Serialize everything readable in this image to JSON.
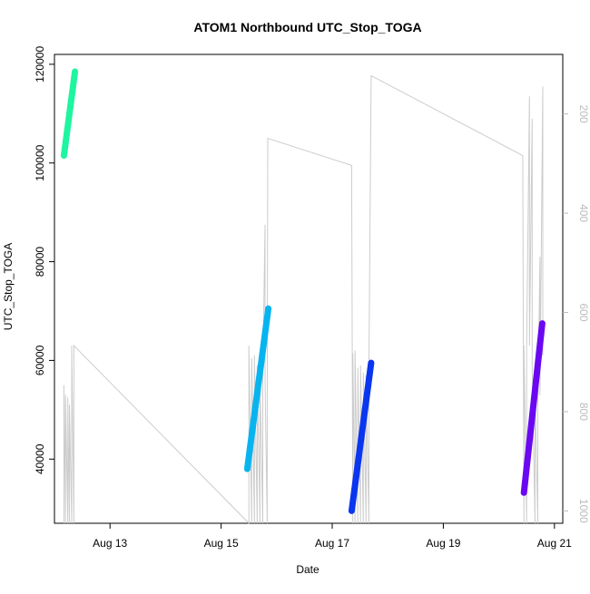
{
  "chart_data": {
    "type": "line",
    "title": "ATOM1 Northbound UTC_Stop_TOGA",
    "xlabel": "Date",
    "ylabel": "UTC_Stop_TOGA",
    "x_ticks": [
      {
        "day": 13,
        "label": "Aug 13"
      },
      {
        "day": 15,
        "label": "Aug 15"
      },
      {
        "day": 17,
        "label": "Aug 17"
      },
      {
        "day": 19,
        "label": "Aug 19"
      },
      {
        "day": 21,
        "label": "Aug 21"
      }
    ],
    "xlim_days": [
      12.0,
      21.15
    ],
    "y_ticks": [
      40000,
      60000,
      80000,
      100000,
      120000
    ],
    "y_tick_labels": [
      "40000",
      "60000",
      "80000",
      "100000",
      "120000"
    ],
    "ylim": [
      27000,
      122000
    ],
    "y2_ticks": [
      200,
      400,
      600,
      800,
      1000
    ],
    "y2_tick_labels": [
      "200",
      "400",
      "600",
      "800",
      "1000"
    ],
    "y2lim": [
      1025,
      80
    ],
    "series": [
      {
        "x_start": 12.17,
        "x_end": 12.37,
        "y_start": 101500,
        "y_end": 118500,
        "color": "#1ef5a0"
      },
      {
        "x_start": 15.47,
        "x_end": 15.85,
        "y_start": 38000,
        "y_end": 70500,
        "color": "#08b4f0"
      },
      {
        "x_start": 17.35,
        "x_end": 17.7,
        "y_start": 29500,
        "y_end": 59500,
        "color": "#0a36f0"
      },
      {
        "x_start": 20.45,
        "x_end": 20.78,
        "y_start": 33200,
        "y_end": 67500,
        "color": "#6a08f2"
      }
    ],
    "background_line": {
      "color": "#cccccc",
      "points": [
        [
          12.17,
          117
        ],
        [
          12.17,
          55000
        ],
        [
          12.2,
          117
        ],
        [
          12.2,
          53000
        ],
        [
          12.24,
          117
        ],
        [
          12.24,
          52500
        ],
        [
          12.27,
          117
        ],
        [
          12.27,
          51000
        ],
        [
          12.31,
          117
        ],
        [
          12.31,
          63000
        ],
        [
          12.35,
          117
        ],
        [
          12.35,
          63000
        ],
        [
          15.5,
          117
        ],
        [
          15.5,
          63000
        ],
        [
          15.55,
          117
        ],
        [
          15.55,
          60500
        ],
        [
          15.6,
          117
        ],
        [
          15.6,
          61000
        ],
        [
          15.65,
          117
        ],
        [
          15.65,
          59000
        ],
        [
          15.7,
          117
        ],
        [
          15.7,
          57000
        ],
        [
          15.75,
          117
        ],
        [
          15.75,
          56500
        ],
        [
          15.79,
          87500
        ],
        [
          15.79,
          56000
        ],
        [
          15.83,
          117
        ],
        [
          15.83,
          52000
        ],
        [
          15.84,
          105000
        ],
        [
          17.35,
          99500
        ],
        [
          17.37,
          117
        ],
        [
          17.37,
          61500
        ],
        [
          17.41,
          117
        ],
        [
          17.41,
          62000
        ],
        [
          17.46,
          117
        ],
        [
          17.46,
          58500
        ],
        [
          17.51,
          117
        ],
        [
          17.51,
          59000
        ],
        [
          17.56,
          117
        ],
        [
          17.56,
          57500
        ],
        [
          17.61,
          117
        ],
        [
          17.61,
          57000
        ],
        [
          17.66,
          117
        ],
        [
          17.66,
          57500
        ],
        [
          17.7,
          117700
        ],
        [
          20.43,
          101500
        ],
        [
          20.45,
          117
        ],
        [
          20.45,
          63000
        ],
        [
          20.5,
          117
        ],
        [
          20.5,
          63000
        ],
        [
          20.55,
          113500
        ],
        [
          20.55,
          63000
        ],
        [
          20.6,
          109000
        ],
        [
          20.6,
          58500
        ],
        [
          20.65,
          117
        ],
        [
          20.65,
          55000
        ],
        [
          20.7,
          117
        ],
        [
          20.7,
          51000
        ],
        [
          20.74,
          81000
        ],
        [
          20.74,
          53000
        ],
        [
          20.79,
          115500
        ],
        [
          20.79,
          61000
        ]
      ]
    }
  }
}
